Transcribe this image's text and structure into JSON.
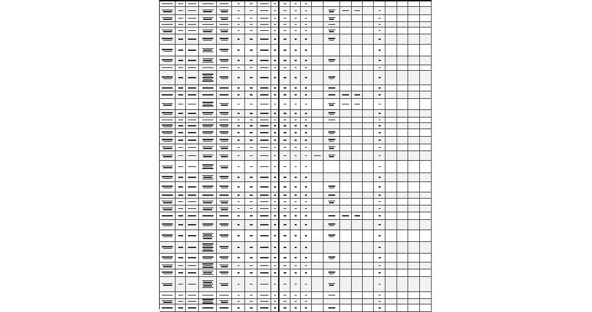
{
  "sheet": {
    "column_count": 22,
    "grid_color": "#444444",
    "alt_row_color": "#f2f2f2",
    "rows": [
      {
        "lines": 1,
        "extra": []
      },
      {
        "lines": 2,
        "extra": [
          13,
          14,
          15,
          17
        ]
      },
      {
        "lines": 2,
        "extra": [
          13,
          17
        ]
      },
      {
        "lines": 1,
        "extra": [
          13,
          17
        ]
      },
      {
        "lines": 2,
        "extra": [
          13,
          17
        ]
      },
      {
        "lines": 2,
        "extra": [
          13,
          17
        ]
      },
      {
        "lines": 3,
        "extra": [
          17
        ]
      },
      {
        "lines": 3,
        "extra": [
          13,
          17
        ]
      },
      {
        "lines": 1,
        "extra": [
          17
        ]
      },
      {
        "lines": 5,
        "extra": [
          13,
          17
        ]
      },
      {
        "lines": 1,
        "extra": [
          13,
          17
        ]
      },
      {
        "lines": 1,
        "extra": [
          13,
          14,
          15,
          17
        ]
      },
      {
        "lines": 3,
        "extra": [
          13,
          14,
          15,
          17
        ]
      },
      {
        "lines": 2,
        "extra": [
          13,
          17
        ]
      },
      {
        "lines": 1,
        "extra": [
          13,
          17
        ]
      },
      {
        "lines": 2,
        "extra": [
          17
        ]
      },
      {
        "lines": 2,
        "extra": [
          13,
          17
        ]
      },
      {
        "lines": 2,
        "extra": [
          13,
          17
        ]
      },
      {
        "lines": 2,
        "extra": [
          13,
          17
        ]
      },
      {
        "lines": 2,
        "extra": [
          12,
          13,
          17
        ]
      },
      {
        "lines": 3,
        "extra": [
          17
        ]
      },
      {
        "lines": 3,
        "extra": [
          17
        ]
      },
      {
        "lines": 2,
        "extra": [
          13,
          17
        ]
      },
      {
        "lines": 1,
        "extra": [
          13,
          17
        ]
      },
      {
        "lines": 2,
        "extra": [
          13,
          17
        ]
      },
      {
        "lines": 2,
        "extra": [
          17
        ]
      },
      {
        "lines": 1,
        "extra": [
          13,
          14,
          15,
          17
        ]
      },
      {
        "lines": 2,
        "extra": [
          13,
          17
        ]
      },
      {
        "lines": 4,
        "extra": [
          13,
          17
        ]
      },
      {
        "lines": 5,
        "extra": [
          17
        ]
      },
      {
        "lines": 2,
        "extra": [
          13,
          17
        ]
      },
      {
        "lines": 3,
        "extra": [
          17
        ]
      },
      {
        "lines": 3,
        "extra": [
          13,
          17
        ]
      },
      {
        "lines": 5,
        "extra": [
          13,
          17
        ]
      },
      {
        "lines": 1,
        "extra": [
          13,
          17
        ]
      },
      {
        "lines": 3,
        "extra": [
          17
        ]
      },
      {
        "lines": 1,
        "extra": [
          13,
          17
        ]
      }
    ]
  }
}
